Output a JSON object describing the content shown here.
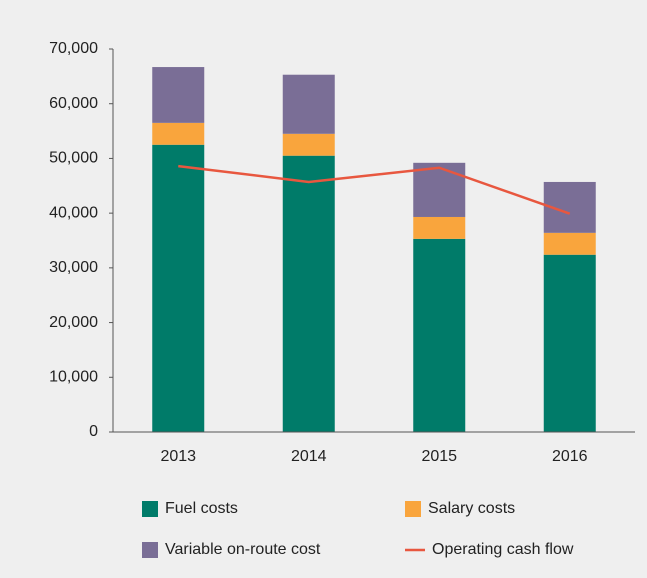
{
  "chart_data": {
    "type": "stacked_bar_line",
    "categories": [
      "2013",
      "2014",
      "2015",
      "2016"
    ],
    "series": [
      {
        "name": "Fuel costs",
        "color": "#007b69",
        "values": [
          52500,
          50500,
          35300,
          32400
        ]
      },
      {
        "name": "Salary costs",
        "color": "#f9a53d",
        "values": [
          4000,
          4000,
          4000,
          4000
        ]
      },
      {
        "name": "Variable on-route cost",
        "color": "#7a6e96",
        "values": [
          10200,
          10800,
          9900,
          9300
        ]
      },
      {
        "name": "Operating cash flow",
        "color": "#e8573f",
        "type": "line",
        "values": [
          48600,
          45700,
          48300,
          39900
        ]
      }
    ],
    "ylim": [
      0,
      70000
    ],
    "yticks": [
      0,
      {
        "value": 10000,
        "label": "10,000"
      },
      {
        "value": 20000,
        "label": "20,000"
      },
      {
        "value": 30000,
        "label": "30,000"
      },
      {
        "value": 40000,
        "label": "40,000"
      },
      {
        "value": 50000,
        "label": "50,000"
      },
      {
        "value": 60000,
        "label": "60,000"
      },
      {
        "value": 70000,
        "label": "70,000"
      }
    ],
    "grid": false
  }
}
